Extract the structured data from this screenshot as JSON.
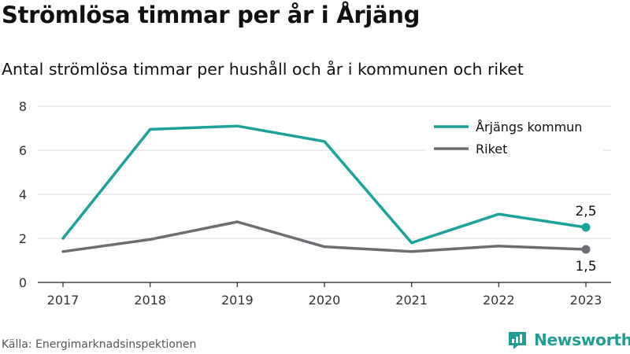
{
  "header": {
    "title": "Strömlösa timmar per år i Årjäng",
    "subtitle": "Antal strömlösa timmar per hushåll och år i kommunen och riket"
  },
  "footer": {
    "source": "Källa: Energimarknadsinspektionen",
    "logo_text": "Newsworthy",
    "logo_icon": "newsworthy-logo-icon"
  },
  "chart_data": {
    "type": "line",
    "x": [
      "2017",
      "2018",
      "2019",
      "2020",
      "2021",
      "2022",
      "2023"
    ],
    "ylim": [
      0,
      8
    ],
    "yticks": [
      0,
      2,
      4,
      6,
      8
    ],
    "grid": true,
    "legend_position": "top-right",
    "series": [
      {
        "name": "Årjängs kommun",
        "color": "#1aa39a",
        "values": [
          2.0,
          6.95,
          7.1,
          6.4,
          1.8,
          3.1,
          2.5
        ],
        "end_label": "2,5"
      },
      {
        "name": "Riket",
        "color": "#6e6d73",
        "values": [
          1.4,
          1.95,
          2.75,
          1.62,
          1.4,
          1.65,
          1.5
        ],
        "end_label": "1,5"
      }
    ]
  }
}
